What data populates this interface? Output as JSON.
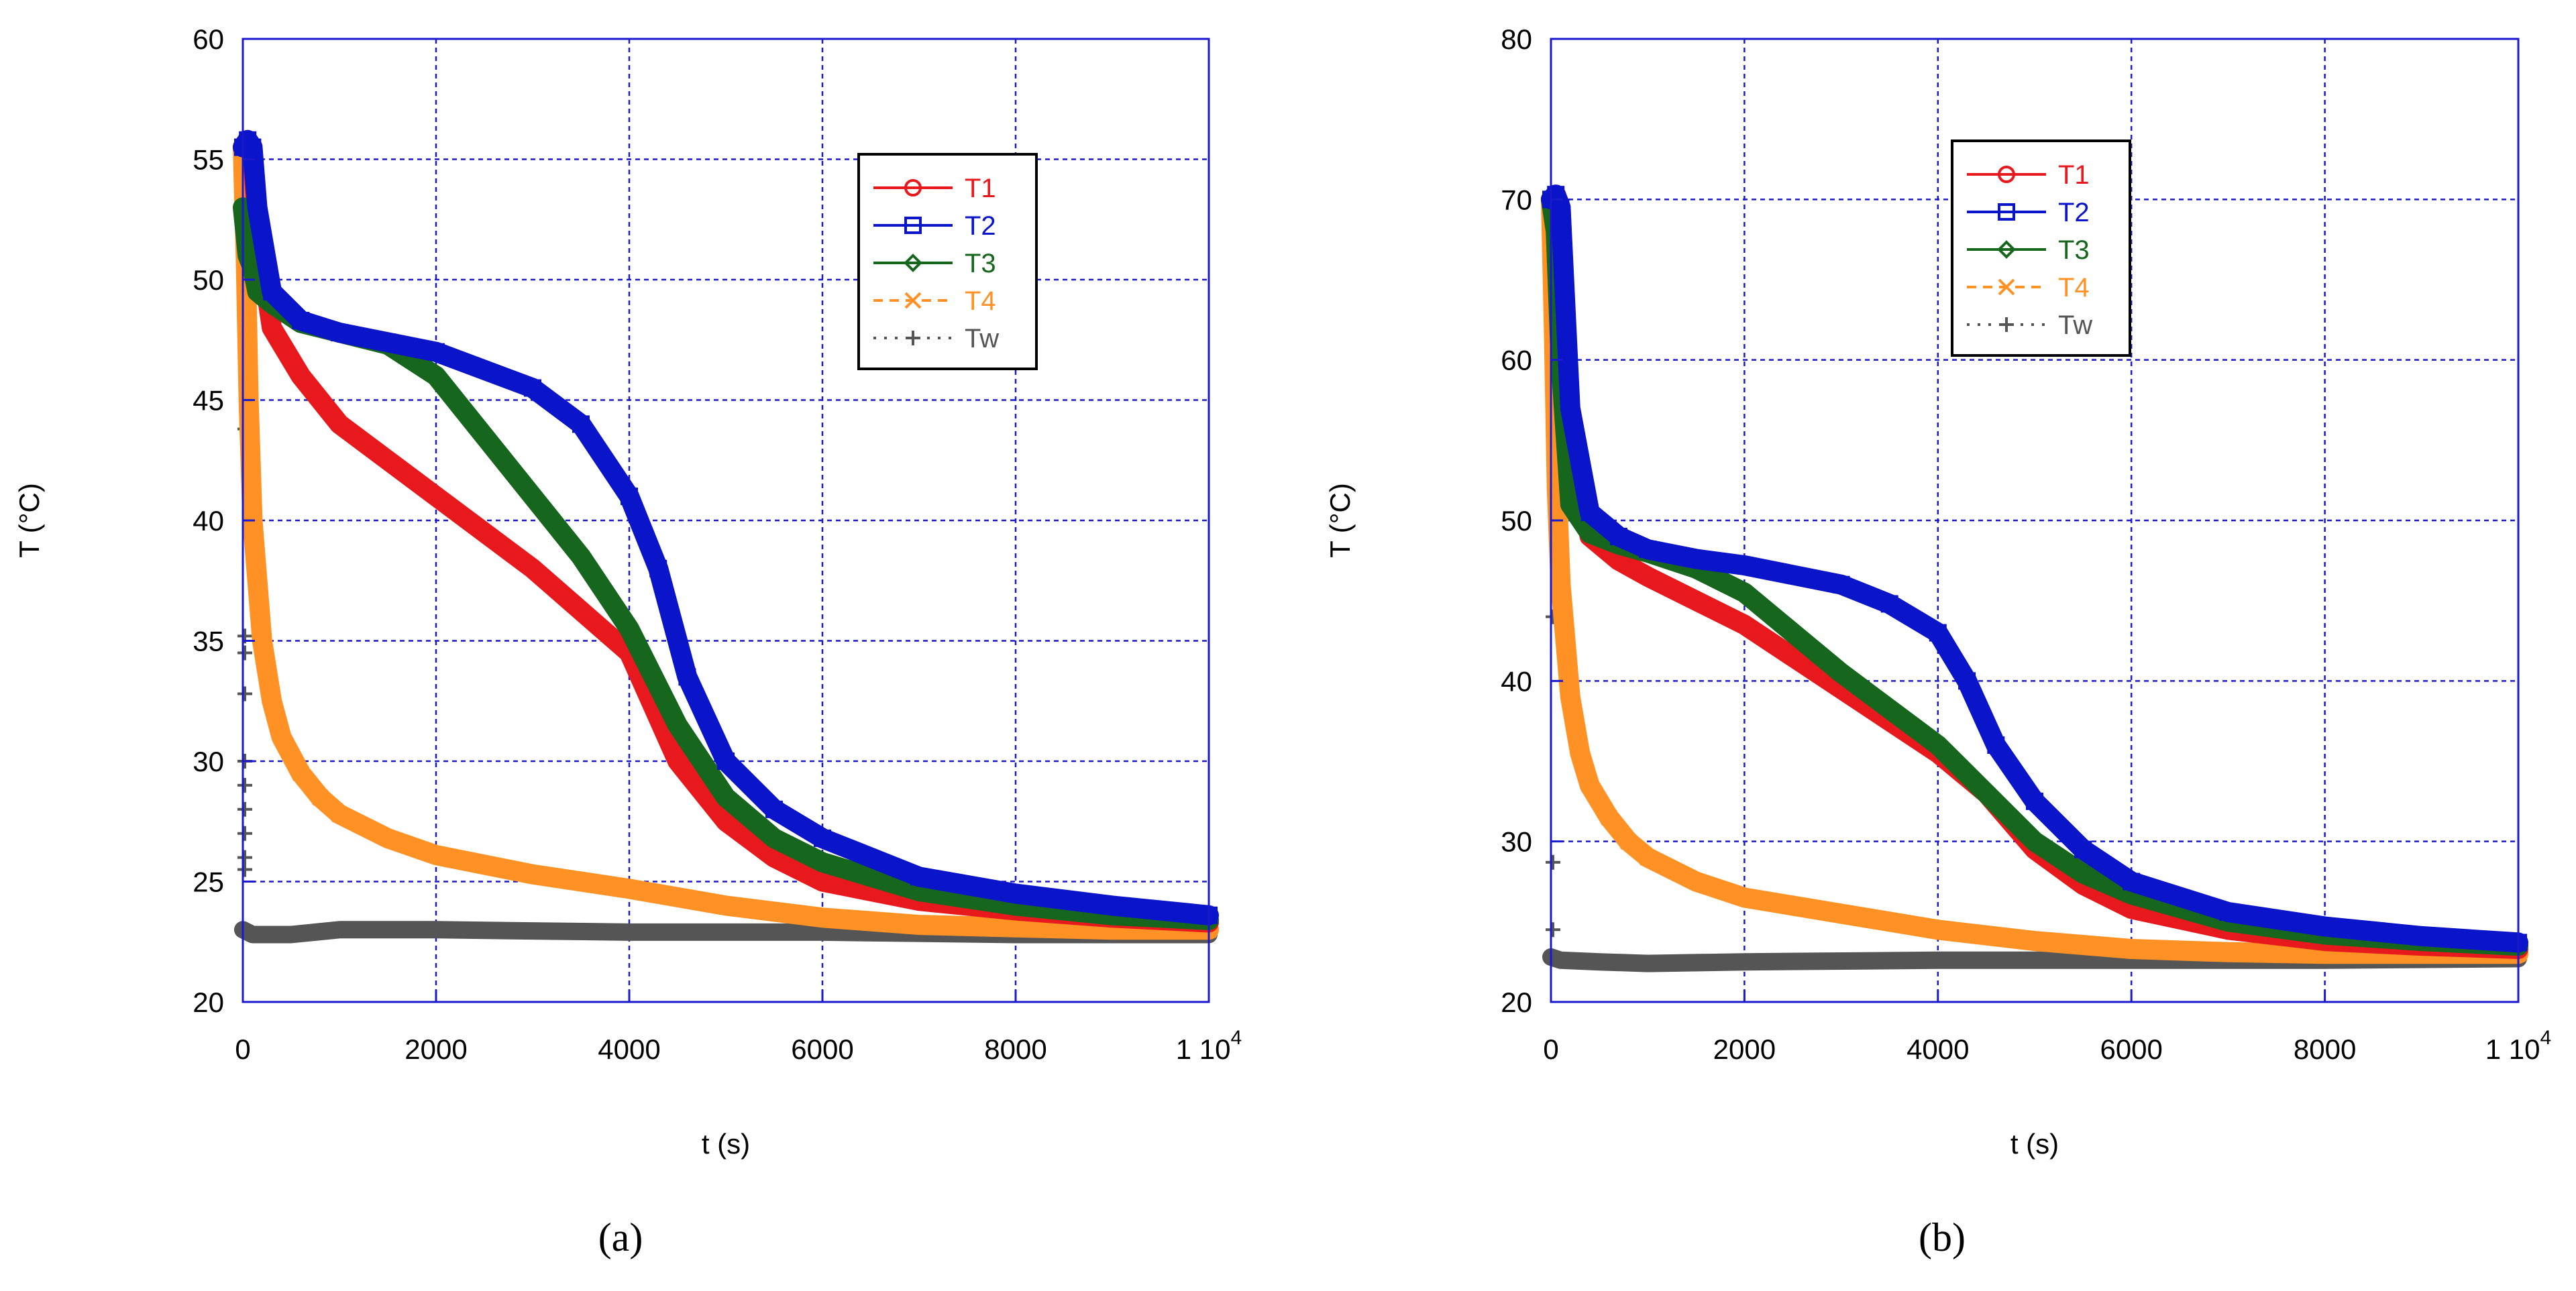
{
  "chart_data": [
    {
      "type": "line",
      "caption": "(a)",
      "xlabel": "t (s)",
      "ylabel": "T (°C)",
      "xlim": [
        0,
        10000
      ],
      "ylim": [
        20,
        60
      ],
      "xticks": [
        0,
        2000,
        4000,
        6000,
        8000,
        10000
      ],
      "xtick_labels": [
        "0",
        "2000",
        "4000",
        "6000",
        "8000",
        "1 10"
      ],
      "last_xtick_exponent": "4",
      "yticks": [
        20,
        25,
        30,
        35,
        40,
        45,
        50,
        55,
        60
      ],
      "ytick_labels": [
        "20",
        "25",
        "30",
        "35",
        "40",
        "45",
        "50",
        "55",
        "60"
      ],
      "grid": true,
      "legend_position": "top-right",
      "series": [
        {
          "name": "T1",
          "color": "#e8191c",
          "marker": "circle",
          "dash": "solid",
          "x": [
            0,
            50,
            100,
            150,
            300,
            600,
            1000,
            1500,
            2000,
            3000,
            4000,
            4500,
            5000,
            5500,
            6000,
            7000,
            8000,
            9000,
            10000
          ],
          "y": [
            55.5,
            55.8,
            55.5,
            52,
            48,
            46,
            44,
            42.5,
            41,
            38,
            34.5,
            30,
            27.5,
            26,
            25,
            24.2,
            23.8,
            23.5,
            23.3
          ]
        },
        {
          "name": "T2",
          "color": "#0a14c8",
          "marker": "square",
          "dash": "solid",
          "x": [
            0,
            50,
            100,
            150,
            300,
            600,
            1000,
            1500,
            2000,
            3000,
            3500,
            4000,
            4300,
            4600,
            5000,
            5500,
            6000,
            7000,
            8000,
            9000,
            10000
          ],
          "y": [
            55.5,
            55.8,
            55.5,
            53,
            49.5,
            48.3,
            47.8,
            47.4,
            47,
            45.5,
            44,
            41,
            38,
            33.5,
            30,
            28,
            26.8,
            25.2,
            24.5,
            24,
            23.6
          ]
        },
        {
          "name": "T3",
          "color": "#17661e",
          "marker": "diamond",
          "dash": "solid",
          "x": [
            0,
            50,
            100,
            150,
            300,
            600,
            1000,
            1500,
            2000,
            2500,
            3000,
            3500,
            4000,
            4500,
            5000,
            5500,
            6000,
            7000,
            8000,
            9000,
            10000
          ],
          "y": [
            53,
            51,
            50.5,
            49.5,
            49,
            48.2,
            47.8,
            47.3,
            46,
            43.5,
            41,
            38.5,
            35.5,
            31.5,
            28.5,
            26.8,
            25.8,
            24.6,
            24,
            23.6,
            23.4
          ]
        },
        {
          "name": "T4",
          "color": "#ff9125",
          "marker": "x",
          "dash": "dashed",
          "x": [
            0,
            30,
            60,
            100,
            200,
            300,
            400,
            600,
            800,
            1000,
            1500,
            2000,
            3000,
            4000,
            5000,
            6000,
            7000,
            8000,
            9000,
            10000
          ],
          "y": [
            55.5,
            51,
            45,
            40,
            35,
            32.5,
            31,
            29.5,
            28.5,
            27.8,
            26.8,
            26.1,
            25.3,
            24.7,
            24,
            23.5,
            23.2,
            23.1,
            23,
            23
          ]
        },
        {
          "name": "Tw",
          "color": "#555555",
          "marker": "plus",
          "dash": "dotted",
          "x": [
            0,
            100,
            500,
            1000,
            2000,
            4000,
            6000,
            8000,
            10000
          ],
          "y": [
            23,
            22.8,
            22.8,
            23,
            23,
            22.9,
            22.9,
            22.8,
            22.8
          ],
          "initial_markers_y": [
            43.8,
            35.2,
            34.5,
            32.8,
            30,
            29,
            28,
            27,
            26,
            25.5
          ]
        }
      ]
    },
    {
      "type": "line",
      "caption": "(b)",
      "xlabel": "t (s)",
      "ylabel": "T (°C)",
      "xlim": [
        0,
        10000
      ],
      "ylim": [
        20,
        80
      ],
      "xticks": [
        0,
        2000,
        4000,
        6000,
        8000,
        10000
      ],
      "xtick_labels": [
        "0",
        "2000",
        "4000",
        "6000",
        "8000",
        "1 10"
      ],
      "last_xtick_exponent": "4",
      "yticks": [
        20,
        30,
        40,
        50,
        60,
        70,
        80
      ],
      "ytick_labels": [
        "20",
        "30",
        "40",
        "50",
        "60",
        "70",
        "80"
      ],
      "grid": true,
      "legend_position": "top-right",
      "series": [
        {
          "name": "T1",
          "color": "#e8191c",
          "marker": "circle",
          "dash": "solid",
          "x": [
            0,
            50,
            100,
            200,
            400,
            700,
            1000,
            1500,
            2000,
            3000,
            4000,
            4500,
            5000,
            5500,
            6000,
            7000,
            8000,
            9000,
            10000
          ],
          "y": [
            70,
            70.3,
            69.5,
            55,
            49,
            47.5,
            46.5,
            45,
            43.5,
            39.5,
            35.5,
            33,
            29.5,
            27.3,
            25.8,
            24.5,
            23.8,
            23.5,
            23.3
          ]
        },
        {
          "name": "T2",
          "color": "#0a14c8",
          "marker": "square",
          "dash": "solid",
          "x": [
            0,
            50,
            100,
            200,
            400,
            700,
            1000,
            1500,
            2000,
            3000,
            3500,
            4000,
            4300,
            4600,
            5000,
            5500,
            6000,
            7000,
            8000,
            9000,
            10000
          ],
          "y": [
            70,
            70.3,
            69.5,
            57,
            50.5,
            49,
            48.2,
            47.6,
            47.2,
            46,
            44.8,
            43,
            40,
            36,
            32.5,
            29.5,
            27.5,
            25.6,
            24.7,
            24.1,
            23.7
          ]
        },
        {
          "name": "T3",
          "color": "#17661e",
          "marker": "diamond",
          "dash": "solid",
          "x": [
            0,
            50,
            100,
            200,
            400,
            700,
            1000,
            1500,
            2000,
            3000,
            4000,
            4500,
            5000,
            5500,
            6000,
            7000,
            8000,
            9000,
            10000
          ],
          "y": [
            70,
            68,
            60,
            51,
            49.2,
            48.5,
            48,
            47,
            45.5,
            40.5,
            36,
            33,
            30,
            28,
            26.7,
            25,
            24.2,
            23.8,
            23.5
          ]
        },
        {
          "name": "T4",
          "color": "#ff9125",
          "marker": "x",
          "dash": "dashed",
          "x": [
            0,
            30,
            60,
            100,
            200,
            300,
            400,
            600,
            800,
            1000,
            1500,
            2000,
            3000,
            4000,
            5000,
            6000,
            7000,
            8000,
            9000,
            10000
          ],
          "y": [
            70,
            62,
            52,
            46,
            39,
            35.5,
            33.5,
            31.5,
            30,
            29,
            27.5,
            26.5,
            25.5,
            24.5,
            23.8,
            23.3,
            23.1,
            23,
            23,
            23
          ]
        },
        {
          "name": "Tw",
          "color": "#555555",
          "marker": "plus",
          "dash": "dotted",
          "x": [
            0,
            100,
            500,
            1000,
            2000,
            4000,
            6000,
            8000,
            10000
          ],
          "y": [
            22.8,
            22.6,
            22.5,
            22.4,
            22.5,
            22.6,
            22.6,
            22.6,
            22.7
          ],
          "initial_markers_y": [
            44,
            28.7,
            24.5
          ]
        }
      ]
    }
  ]
}
